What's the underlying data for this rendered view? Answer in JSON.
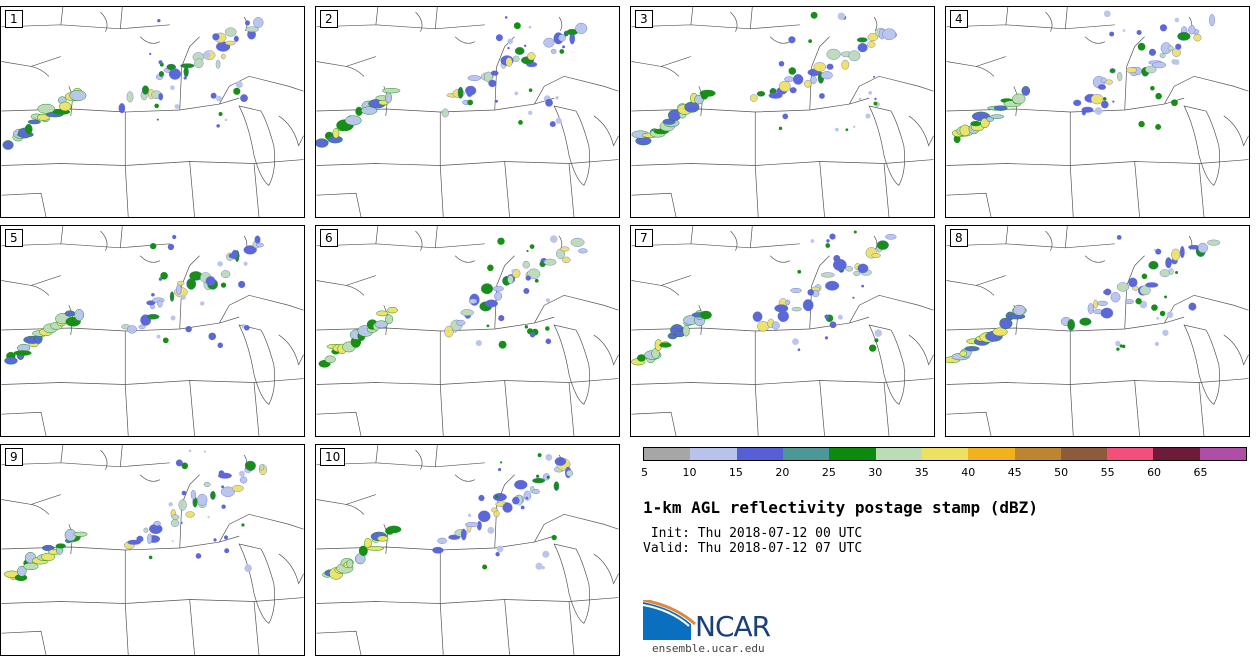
{
  "panels": [
    {
      "label": "1"
    },
    {
      "label": "2"
    },
    {
      "label": "3"
    },
    {
      "label": "4"
    },
    {
      "label": "5"
    },
    {
      "label": "6"
    },
    {
      "label": "7"
    },
    {
      "label": "8"
    },
    {
      "label": "9"
    },
    {
      "label": "10"
    }
  ],
  "colorbar": {
    "colors": [
      "#a6a6a6",
      "#b8c3eb",
      "#5560d6",
      "#4d9797",
      "#0b8a0b",
      "#bcdbb7",
      "#ede164",
      "#f1b21c",
      "#bd8431",
      "#8d5a3c",
      "#f24f7d",
      "#6e1b3b",
      "#b04da8"
    ],
    "ticks": [
      "5",
      "10",
      "15",
      "20",
      "25",
      "30",
      "35",
      "40",
      "45",
      "50",
      "55",
      "60",
      "65"
    ]
  },
  "title": "1-km AGL reflectivity postage stamp (dBZ)",
  "init": " Init: Thu 2018-07-12 00 UTC",
  "valid": "Valid: Thu 2018-07-12 07 UTC",
  "logo": {
    "text": "NCAR",
    "site": "ensemble.ucar.edu"
  }
}
